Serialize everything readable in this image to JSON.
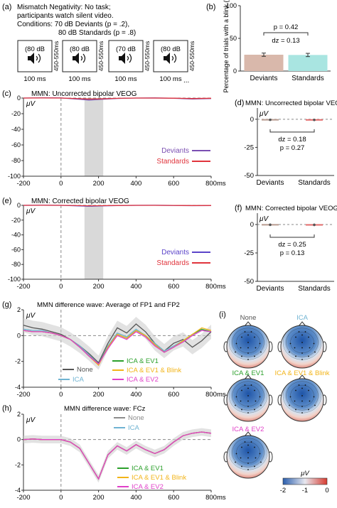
{
  "panel_a": {
    "letter": "(a)",
    "lines": [
      "Mismatch Negativity: No task;",
      "participants watch silent video.",
      "Conditions: 70 dB Deviants (p = .2),",
      "80 dB Standards (p = .8)"
    ],
    "tones": [
      "(80 dB",
      "(80 dB",
      "(70 dB",
      "(80 dB"
    ],
    "isi": "450-550ms",
    "duration": "100 ms",
    "ellipsis": "..."
  },
  "chart_data": [
    {
      "panel": "(b)",
      "type": "bar",
      "categories": [
        "Deviants",
        "Standards"
      ],
      "values": [
        25,
        24.6
      ],
      "errors": [
        2.5,
        2.5
      ],
      "colors": [
        "#d9b8ab",
        "#a9e5e1"
      ],
      "ylabel": "Percentage of trials with a blink (%)",
      "ylim": [
        0,
        100
      ],
      "yticks": [
        0,
        50,
        100
      ],
      "annotations": [
        "p = 0.42",
        "d_z = 0.13"
      ]
    },
    {
      "panel": "(c)",
      "type": "line",
      "title": "MMN: Uncorrected bipolar VEOG",
      "ylabel": "μV",
      "xunit": "ms",
      "xlim": [
        -200,
        800
      ],
      "ylim": [
        -100,
        0
      ],
      "xticks": [
        -200,
        0,
        200,
        400,
        600,
        800
      ],
      "yticks": [
        0,
        -20,
        -40,
        -60,
        -80,
        -100
      ],
      "shaded_window": [
        125,
        225
      ],
      "series": [
        {
          "name": "Deviants",
          "color": "#7b4fb2",
          "x": [
            -200,
            -100,
            0,
            100,
            150,
            200,
            300,
            400,
            500,
            600,
            700,
            800
          ],
          "y": [
            0,
            0.3,
            0.2,
            -1.5,
            -2.5,
            -1.8,
            -0.5,
            0,
            0.2,
            -0.3,
            -1.2,
            -0.6
          ]
        },
        {
          "name": "Standards",
          "color": "#e0343c",
          "x": [
            -200,
            -100,
            0,
            100,
            150,
            200,
            300,
            400,
            500,
            600,
            700,
            800
          ],
          "y": [
            0,
            0.1,
            0,
            -0.8,
            -1.2,
            -1,
            -0.4,
            0,
            0,
            -0.2,
            -0.6,
            -0.3
          ]
        }
      ]
    },
    {
      "panel": "(d)",
      "type": "scatter",
      "title": "MMN: Uncorrected bipolar VEOG",
      "ylabel": "μV",
      "categories": [
        "Deviants",
        "Standards"
      ],
      "values": [
        -0.5,
        -0.6
      ],
      "ylim": [
        -50,
        10
      ],
      "yticks": [
        0,
        -25,
        -50
      ],
      "annotations": [
        "d_z = 0.18",
        "p = 0.27"
      ]
    },
    {
      "panel": "(e)",
      "type": "line",
      "title": "MMN: Corrected bipolar VEOG",
      "ylabel": "μV",
      "xunit": "ms",
      "xlim": [
        -200,
        800
      ],
      "ylim": [
        -100,
        0
      ],
      "xticks": [
        -200,
        0,
        200,
        400,
        600,
        800
      ],
      "yticks": [
        0,
        -20,
        -40,
        -60,
        -80,
        -100
      ],
      "shaded_window": [
        125,
        225
      ],
      "series": [
        {
          "name": "Deviants",
          "color": "#5b44c9",
          "x": [
            -200,
            -100,
            0,
            100,
            150,
            200,
            300,
            400,
            500,
            600,
            700,
            800
          ],
          "y": [
            0,
            0.2,
            0,
            -0.8,
            -1.2,
            -0.9,
            -0.3,
            0,
            0.1,
            -0.2,
            -0.5,
            -0.3
          ]
        },
        {
          "name": "Standards",
          "color": "#e0343c",
          "x": [
            -200,
            -100,
            0,
            100,
            150,
            200,
            300,
            400,
            500,
            600,
            700,
            800
          ],
          "y": [
            0,
            0.1,
            0,
            -0.4,
            -0.6,
            -0.5,
            -0.2,
            0,
            0,
            -0.1,
            -0.3,
            -0.2
          ]
        }
      ]
    },
    {
      "panel": "(f)",
      "type": "scatter",
      "title": "MMN: Corrected bipolar VEOG",
      "ylabel": "μV",
      "categories": [
        "Deviants",
        "Standards"
      ],
      "values": [
        -0.2,
        -0.3
      ],
      "ylim": [
        -50,
        10
      ],
      "yticks": [
        0,
        -25,
        -50
      ],
      "annotations": [
        "d_z = 0.25",
        "p = 0.13"
      ]
    },
    {
      "panel": "(g)",
      "type": "line",
      "title": "MMN difference wave: Average of FP1 and FP2",
      "ylabel": "μV",
      "xunit": "ms",
      "xlim": [
        -200,
        800
      ],
      "ylim": [
        -4,
        2
      ],
      "xticks": [
        -200,
        0,
        200,
        400,
        600,
        800
      ],
      "yticks": [
        2,
        0,
        -2,
        -4
      ],
      "x": [
        -200,
        -150,
        -100,
        -50,
        0,
        50,
        100,
        150,
        200,
        250,
        300,
        350,
        400,
        450,
        500,
        550,
        600,
        650,
        700,
        750,
        800
      ],
      "series": [
        {
          "name": "None",
          "color": "#555555",
          "y": [
            0.8,
            0.6,
            0.5,
            0.3,
            0.1,
            -0.3,
            -0.8,
            -1.4,
            -2.1,
            -0.6,
            0.6,
            0.2,
            0.9,
            0.3,
            -0.6,
            -1.2,
            -0.6,
            -0.3,
            -0.9,
            -0.4,
            0.3
          ]
        },
        {
          "name": "ICA",
          "color": "#6fb3d2",
          "y": [
            0.5,
            0.4,
            0.4,
            0.2,
            0,
            -0.3,
            -0.8,
            -1.5,
            -2.2,
            -0.8,
            0.2,
            -0.1,
            0.5,
            0,
            -0.6,
            -1.2,
            -0.8,
            -0.4,
            0,
            0.4,
            0.3
          ]
        },
        {
          "name": "ICA & EV1",
          "color": "#2ca02c",
          "y": [
            0.4,
            0.3,
            0.3,
            0.2,
            0,
            -0.3,
            -0.9,
            -1.6,
            -2.2,
            -0.9,
            0.1,
            -0.2,
            0.4,
            0,
            -0.7,
            -1.3,
            -0.9,
            -0.4,
            0.1,
            0.5,
            0.3
          ]
        },
        {
          "name": "ICA & EV1 & Blink",
          "color": "#f2b418",
          "y": [
            0.4,
            0.3,
            0.3,
            0.2,
            0,
            -0.3,
            -0.9,
            -1.6,
            -2.3,
            -0.9,
            0.1,
            -0.2,
            0.4,
            0,
            -0.7,
            -1.3,
            -0.9,
            -0.4,
            0.1,
            0.6,
            0.4
          ]
        },
        {
          "name": "ICA & EV2",
          "color": "#e040c8",
          "y": [
            0.4,
            0.3,
            0.3,
            0.2,
            0,
            -0.3,
            -0.9,
            -1.6,
            -2.2,
            -1,
            0,
            -0.3,
            0.3,
            -0.1,
            -0.8,
            -1.3,
            -0.9,
            -0.5,
            0,
            0.4,
            0.3
          ]
        }
      ]
    },
    {
      "panel": "(h)",
      "type": "line",
      "title": "MMN difference wave: FCz",
      "ylabel": "μV",
      "xunit": "ms",
      "xlim": [
        -200,
        800
      ],
      "ylim": [
        -4,
        2
      ],
      "xticks": [
        -200,
        0,
        200,
        400,
        600,
        800
      ],
      "yticks": [
        2,
        0,
        -2,
        -4
      ],
      "x": [
        -200,
        -150,
        -100,
        -50,
        0,
        50,
        100,
        150,
        200,
        250,
        300,
        350,
        400,
        450,
        500,
        550,
        600,
        650,
        700,
        750,
        800
      ],
      "series": [
        {
          "name": "None",
          "color": "#8c8c8c",
          "y": [
            0,
            0.05,
            0,
            0,
            0,
            -0.2,
            -0.7,
            -1.9,
            -3.1,
            -1.2,
            -0.5,
            -0.9,
            -0.4,
            -0.8,
            -1.1,
            -0.8,
            -0.2,
            0.3,
            0.5,
            0.6,
            0.5
          ]
        },
        {
          "name": "ICA",
          "color": "#6fb3d2",
          "y": [
            0,
            0.05,
            0,
            0,
            0,
            -0.2,
            -0.7,
            -1.9,
            -3.1,
            -1.2,
            -0.5,
            -0.9,
            -0.4,
            -0.8,
            -1.1,
            -0.8,
            -0.2,
            0.3,
            0.5,
            0.6,
            0.5
          ]
        },
        {
          "name": "ICA & EV1",
          "color": "#2ca02c",
          "y": [
            0,
            0.05,
            0,
            0,
            0,
            -0.2,
            -0.7,
            -1.9,
            -3.1,
            -1.2,
            -0.5,
            -0.9,
            -0.4,
            -0.8,
            -1.1,
            -0.8,
            -0.2,
            0.3,
            0.5,
            0.6,
            0.5
          ]
        },
        {
          "name": "ICA & EV1 & Blink",
          "color": "#f2b418",
          "y": [
            0,
            0.05,
            0,
            0,
            0,
            -0.2,
            -0.7,
            -1.9,
            -3.1,
            -1.2,
            -0.5,
            -0.9,
            -0.4,
            -0.8,
            -1.1,
            -0.8,
            -0.2,
            0.3,
            0.5,
            0.6,
            0.5
          ]
        },
        {
          "name": "ICA & EV2",
          "color": "#e040c8",
          "y": [
            0,
            0.05,
            0,
            0,
            0,
            -0.2,
            -0.7,
            -1.9,
            -3.1,
            -1.2,
            -0.5,
            -0.9,
            -0.4,
            -0.8,
            -1.1,
            -0.8,
            -0.2,
            0.3,
            0.5,
            0.6,
            0.5
          ]
        }
      ]
    }
  ],
  "panel_i": {
    "letter": "(i)",
    "maps": [
      {
        "label": "None",
        "color": "#555555"
      },
      {
        "label": "ICA",
        "color": "#6fb3d2"
      },
      {
        "label": "ICA & EV1",
        "color": "#2ca02c"
      },
      {
        "label": "ICA & EV1 & Blink",
        "color": "#f2b418"
      },
      {
        "label": "ICA & EV2",
        "color": "#e040c8"
      }
    ],
    "colorbar": {
      "unit": "μV",
      "ticks": [
        "-2",
        "-1",
        "0"
      ],
      "low_color": "#2b5fae",
      "high_color": "#d73b30"
    }
  }
}
